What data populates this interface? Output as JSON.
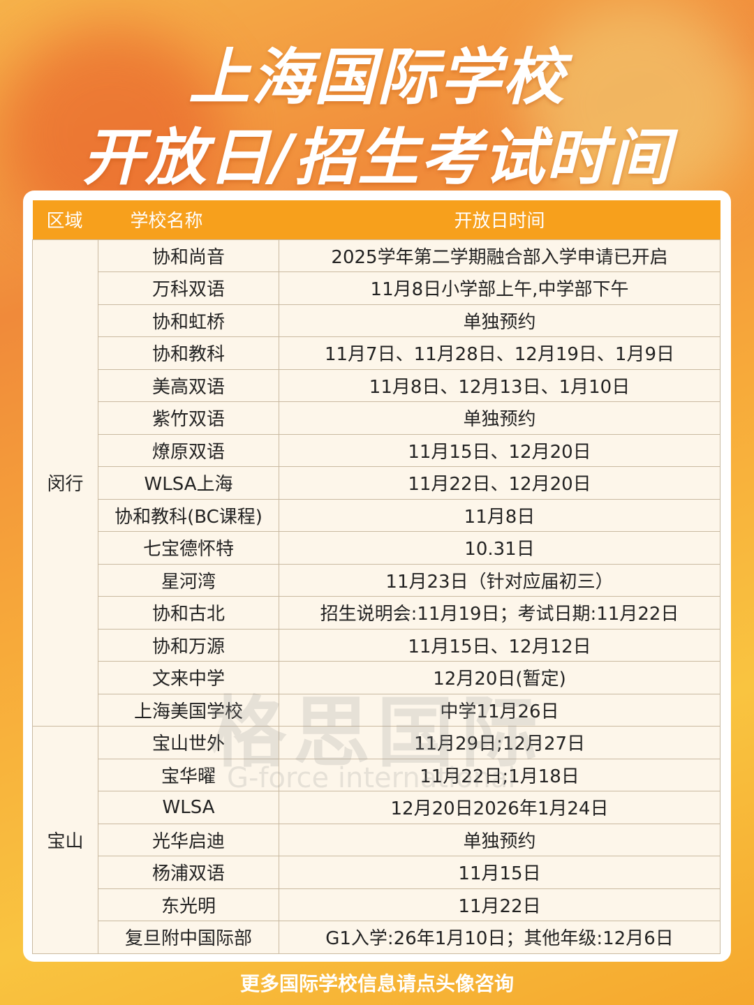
{
  "title": {
    "line1": "上海国际学校",
    "line2": "开放日/招生考试时间"
  },
  "table": {
    "headers": [
      "区域",
      "学校名称",
      "开放日时间"
    ],
    "groups": [
      {
        "region": "闵行",
        "rows": [
          [
            "协和尚音",
            "2025学年第二学期融合部入学申请已开启"
          ],
          [
            "万科双语",
            "11月8日小学部上午,中学部下午"
          ],
          [
            "协和虹桥",
            "单独预约"
          ],
          [
            "协和教科",
            "11月7日、11月28日、12月19日、1月9日"
          ],
          [
            "美高双语",
            "11月8日、12月13日、1月10日"
          ],
          [
            "紫竹双语",
            "单独预约"
          ],
          [
            "燎原双语",
            "11月15日、12月20日"
          ],
          [
            "WLSA上海",
            "11月22日、12月20日"
          ],
          [
            "协和教科(BC课程)",
            "11月8日"
          ],
          [
            "七宝德怀特",
            "10.31日"
          ],
          [
            "星河湾",
            "11月23日（针对应届初三）"
          ],
          [
            "协和古北",
            "招生说明会:11月19日；考试日期:11月22日"
          ],
          [
            "协和万源",
            "11月15日、12月12日"
          ],
          [
            "文来中学",
            "12月20日(暂定)"
          ],
          [
            "上海美国学校",
            "中学11月26日"
          ]
        ]
      },
      {
        "region": "宝山",
        "rows": [
          [
            "宝山世外",
            "11月29日;12月27日"
          ],
          [
            "宝华曜",
            "11月22日;1月18日"
          ],
          [
            "WLSA",
            "12月20日2026年1月24日"
          ],
          [
            "光华启迪",
            "单独预约"
          ],
          [
            "杨浦双语",
            "11月15日"
          ],
          [
            "东光明",
            "11月22日"
          ],
          [
            "复旦附中国际部",
            "G1入学:26年1月10日；其他年级:12月6日"
          ]
        ]
      }
    ]
  },
  "watermark": {
    "cn": "格思国际",
    "en": "G-force international"
  },
  "footer": "更多国际学校信息请点头像咨询",
  "colors": {
    "header": "#f7a01c",
    "row": "#fdf6ea"
  }
}
